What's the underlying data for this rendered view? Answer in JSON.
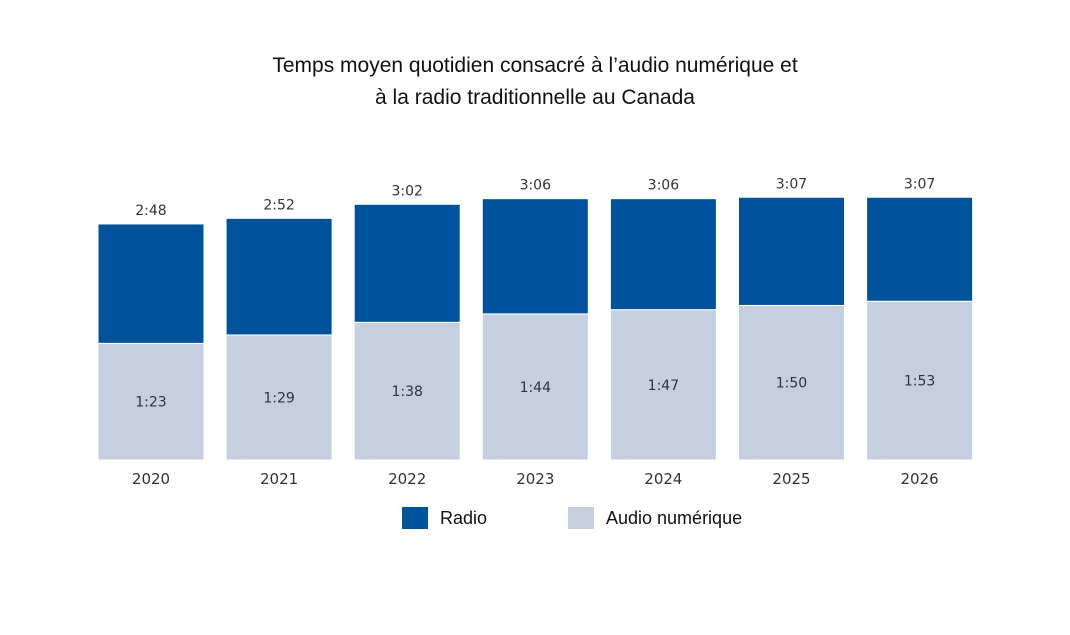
{
  "chart_data": {
    "type": "bar",
    "stacked": true,
    "title_lines": [
      "Temps moyen quotidien consacré à l’audio numérique et",
      "à la radio traditionnelle au Canada"
    ],
    "categories": [
      "2020",
      "2021",
      "2022",
      "2023",
      "2024",
      "2025",
      "2026"
    ],
    "totals": [
      "2:48",
      "2:52",
      "3:02",
      "3:06",
      "3:06",
      "3:07",
      "3:07"
    ],
    "series": [
      {
        "name": "Audio numérique",
        "color": "#c5cfe0",
        "labels": [
          "1:23",
          "1:29",
          "1:38",
          "1:44",
          "1:47",
          "1:50",
          "1:53"
        ],
        "values": [
          83,
          89,
          98,
          104,
          107,
          110,
          113
        ]
      },
      {
        "name": "Radio",
        "color": "#00539b",
        "values": [
          85,
          83,
          84,
          82,
          79,
          77,
          74
        ]
      }
    ],
    "value_unit": "minutes",
    "ylim": [
      0,
      200
    ],
    "grid": false,
    "legend_position": "bottom"
  },
  "legend": {
    "radio_label": "Radio",
    "audio_label": "Audio numérique",
    "radio_color": "#00539b",
    "audio_color": "#c5cfe0"
  }
}
